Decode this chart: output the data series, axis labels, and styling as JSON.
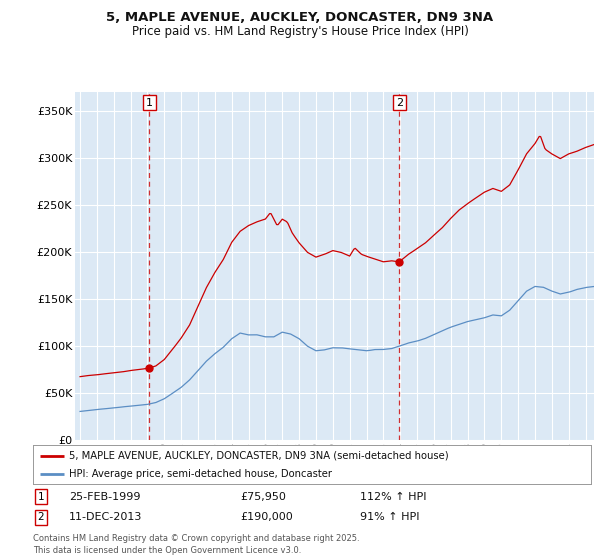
{
  "title_line1": "5, MAPLE AVENUE, AUCKLEY, DONCASTER, DN9 3NA",
  "title_line2": "Price paid vs. HM Land Registry's House Price Index (HPI)",
  "background_color": "#ffffff",
  "plot_bg_color": "#dce9f5",
  "grid_color": "#ffffff",
  "red_color": "#cc0000",
  "blue_color": "#5b8ec4",
  "sale1_date": "25-FEB-1999",
  "sale1_price": 75950,
  "sale1_label": "112% ↑ HPI",
  "sale2_date": "11-DEC-2013",
  "sale2_price": 190000,
  "sale2_label": "91% ↑ HPI",
  "legend_line1": "5, MAPLE AVENUE, AUCKLEY, DONCASTER, DN9 3NA (semi-detached house)",
  "legend_line2": "HPI: Average price, semi-detached house, Doncaster",
  "footnote": "Contains HM Land Registry data © Crown copyright and database right 2025.\nThis data is licensed under the Open Government Licence v3.0.",
  "ylim": [
    0,
    370000
  ],
  "yticks": [
    0,
    50000,
    100000,
    150000,
    200000,
    250000,
    300000,
    350000
  ],
  "ytick_labels": [
    "£0",
    "£50K",
    "£100K",
    "£150K",
    "£200K",
    "£250K",
    "£300K",
    "£350K"
  ],
  "sale1_x": 1999.12,
  "sale2_x": 2013.94,
  "sale1_y": 75950,
  "sale2_y": 190000,
  "xlim_left": 1994.7,
  "xlim_right": 2025.5
}
